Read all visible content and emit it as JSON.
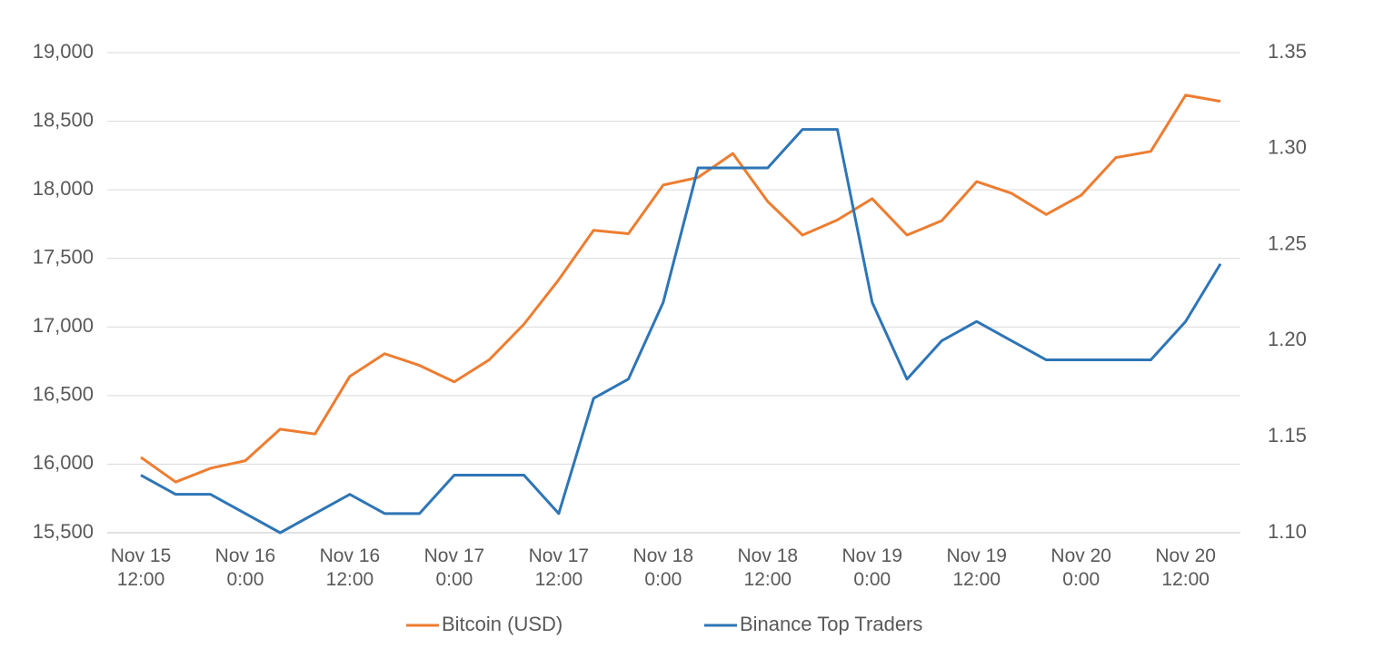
{
  "chart_data": {
    "type": "line",
    "categories": [
      "Nov 15 12:00",
      null,
      null,
      "Nov 16 0:00",
      null,
      null,
      "Nov 16 12:00",
      null,
      null,
      "Nov 17 0:00",
      null,
      null,
      "Nov 17 12:00",
      null,
      null,
      "Nov 18 0:00",
      null,
      null,
      "Nov 18 12:00",
      null,
      null,
      "Nov 19 0:00",
      null,
      null,
      "Nov 19 12:00",
      null,
      null,
      "Nov 20 0:00",
      null,
      null,
      "Nov 20 12:00",
      null
    ],
    "series": [
      {
        "name": "Bitcoin (USD)",
        "color": "#ed7d31",
        "values": [
          16050,
          15870,
          15970,
          16025,
          16255,
          16220,
          16640,
          16805,
          16720,
          16600,
          16760,
          17020,
          17345,
          17705,
          17680,
          18035,
          18090,
          18265,
          17915,
          17670,
          17780,
          17935,
          17670,
          17775,
          18060,
          17975,
          17820,
          17960,
          18235,
          18280,
          18690,
          18645
        ]
      },
      {
        "name": "Binance Top Traders",
        "color": "#2e75b6",
        "axis": "y2",
        "values": [
          1.13,
          1.12,
          1.12,
          1.11,
          1.1,
          1.11,
          1.12,
          1.11,
          1.11,
          1.13,
          1.13,
          1.13,
          1.11,
          1.17,
          1.18,
          1.22,
          1.29,
          1.29,
          1.29,
          1.31,
          1.31,
          1.22,
          1.18,
          1.2,
          1.21,
          1.2,
          1.19,
          1.19,
          1.19,
          1.19,
          1.21,
          1.24
        ]
      }
    ],
    "ylim": [
      15500,
      19000
    ],
    "yticks": [
      {
        "value": 15500,
        "label": "15,500"
      },
      {
        "value": 16000,
        "label": "16,000"
      },
      {
        "value": 16500,
        "label": "16,500"
      },
      {
        "value": 17000,
        "label": "17,000"
      },
      {
        "value": 17500,
        "label": "17,500"
      },
      {
        "value": 18000,
        "label": "18,000"
      },
      {
        "value": 18500,
        "label": "18,500"
      },
      {
        "value": 19000,
        "label": "19,000"
      }
    ],
    "y2lim": [
      1.1,
      1.35
    ],
    "y2ticks": [
      {
        "value": 1.1,
        "label": "1.10"
      },
      1.15,
      {
        "value": 1.2,
        "label": "1.20"
      },
      1.25,
      {
        "value": 1.3,
        "label": "1.30"
      },
      1.35
    ],
    "grid": true,
    "legend": "bottom"
  }
}
